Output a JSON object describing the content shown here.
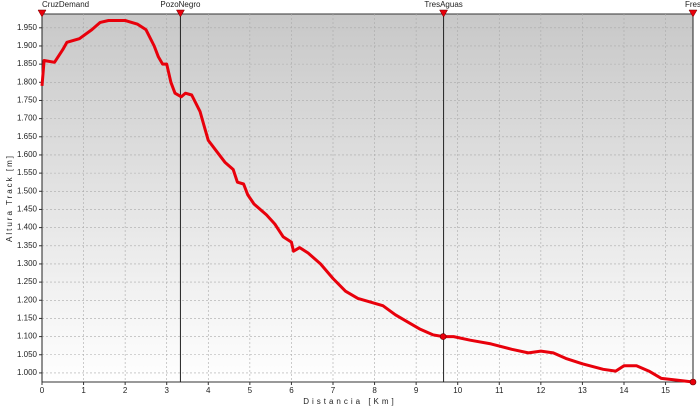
{
  "chart_data": {
    "type": "line",
    "x_label": "Distancia [Km]",
    "y_label": "Altura Track [m]",
    "x": [
      0,
      0.05,
      0.3,
      0.5,
      0.6,
      0.9,
      1.2,
      1.4,
      1.6,
      2.0,
      2.3,
      2.5,
      2.7,
      2.8,
      2.9,
      3.0,
      3.1,
      3.2,
      3.35,
      3.45,
      3.6,
      3.8,
      3.9,
      4.0,
      4.2,
      4.4,
      4.6,
      4.7,
      4.85,
      4.95,
      5.1,
      5.4,
      5.6,
      5.8,
      6.0,
      6.05,
      6.2,
      6.4,
      6.7,
      7.0,
      7.3,
      7.6,
      7.9,
      8.2,
      8.5,
      8.8,
      9.1,
      9.4,
      9.65,
      9.9,
      10.3,
      10.8,
      11.3,
      11.7,
      12.0,
      12.3,
      12.6,
      13.0,
      13.5,
      13.8,
      14.0,
      14.3,
      14.6,
      14.9,
      15.3,
      15.66
    ],
    "values": [
      1790,
      1860,
      1855,
      1890,
      1910,
      1920,
      1945,
      1965,
      1970,
      1970,
      1960,
      1945,
      1900,
      1870,
      1850,
      1850,
      1800,
      1770,
      1760,
      1770,
      1765,
      1720,
      1680,
      1640,
      1610,
      1580,
      1560,
      1525,
      1520,
      1490,
      1465,
      1435,
      1410,
      1375,
      1360,
      1335,
      1345,
      1330,
      1300,
      1260,
      1225,
      1205,
      1195,
      1185,
      1160,
      1140,
      1120,
      1105,
      1100,
      1100,
      1090,
      1080,
      1065,
      1055,
      1060,
      1055,
      1040,
      1025,
      1010,
      1005,
      1020,
      1020,
      1005,
      985,
      980,
      975
    ],
    "color": "#e8000b",
    "waypoints": [
      {
        "name": "CruzDemand",
        "x": 0
      },
      {
        "name": "PozoNegro",
        "x": 3.33
      },
      {
        "name": "TresAguas",
        "x": 9.66
      },
      {
        "name": "Fres",
        "x": 15.66
      }
    ],
    "xlim": [
      0,
      15.66
    ],
    "ylim": [
      975,
      1988
    ],
    "xticks": [
      0,
      1,
      2,
      3,
      4,
      5,
      6,
      7,
      8,
      9,
      10,
      11,
      12,
      13,
      14,
      15
    ],
    "yticks": [
      {
        "value": 1000,
        "label": "1.000"
      },
      {
        "value": 1050,
        "label": "1.050"
      },
      {
        "value": 1100,
        "label": "1.100"
      },
      {
        "value": 1150,
        "label": "1.150"
      },
      {
        "value": 1200,
        "label": "1.200"
      },
      {
        "value": 1250,
        "label": "1.250"
      },
      {
        "value": 1300,
        "label": "1.300"
      },
      {
        "value": 1350,
        "label": "1.350"
      },
      {
        "value": 1400,
        "label": "1.400"
      },
      {
        "value": 1450,
        "label": "1.450"
      },
      {
        "value": 1500,
        "label": "1.500"
      },
      {
        "value": 1550,
        "label": "1.550"
      },
      {
        "value": 1600,
        "label": "1.600"
      },
      {
        "value": 1650,
        "label": "1.650"
      },
      {
        "value": 1700,
        "label": "1.700"
      },
      {
        "value": 1750,
        "label": "1.750"
      },
      {
        "value": 1800,
        "label": "1.800"
      },
      {
        "value": 1850,
        "label": "1.850"
      },
      {
        "value": 1900,
        "label": "1.900"
      },
      {
        "value": 1950,
        "label": "1.950"
      }
    ],
    "grid": true
  }
}
